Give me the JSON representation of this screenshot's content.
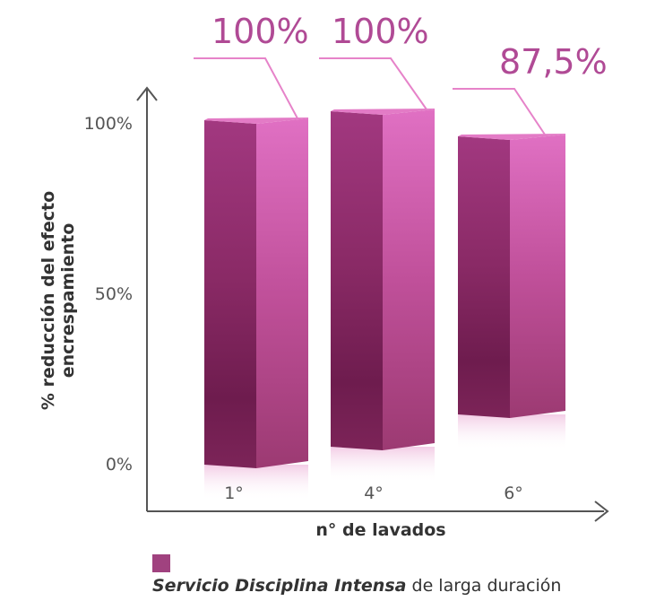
{
  "chart_data": {
    "type": "bar",
    "categories": [
      "1°",
      "4°",
      "6°"
    ],
    "values": [
      100,
      100,
      87.5
    ],
    "data_labels": [
      "100%",
      "100%",
      "87,5%"
    ],
    "xlabel": "n° de lavados",
    "ylabel": "% reducción del efecto encrespamiento",
    "ylabel_lines": [
      "% reducción del efecto",
      "encrespamiento"
    ],
    "y_ticks": [
      0,
      50,
      100
    ],
    "y_tick_labels": [
      "0%",
      "50%",
      "100%"
    ],
    "ylim": [
      0,
      100
    ],
    "grid": false,
    "colors": {
      "bar_front": "#8a2a66",
      "bar_side": "#d45fb4",
      "bar_top": "#e37bc6",
      "label": "#b04a95",
      "leader": "#e683c9",
      "axis": "#555555"
    }
  },
  "legend": {
    "series_italic": "Servicio Disciplina Intensa",
    "series_rest": " de larga duración",
    "color": "#a0427f"
  }
}
